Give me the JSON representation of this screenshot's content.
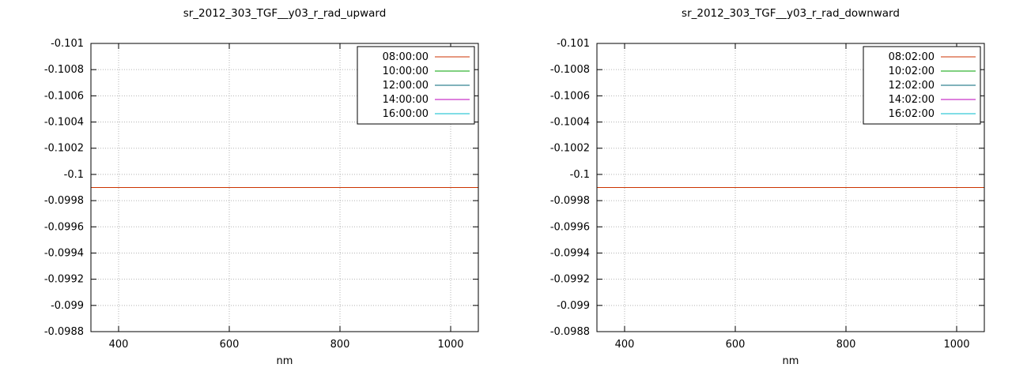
{
  "chart_data": [
    {
      "type": "line",
      "title": "sr_2012_303_TGF__y03_r_rad_upward",
      "xlabel": "nm",
      "xlim": [
        350,
        1050
      ],
      "ylim": [
        -0.101,
        -0.0988
      ],
      "y_axis_inverted_top_to_bottom": true,
      "x_ticks": [
        400,
        600,
        800,
        1000
      ],
      "y_tick_labels": [
        "-0.101",
        "-0.1008",
        "-0.1006",
        "-0.1004",
        "-0.1002",
        "-0.1",
        "-0.0998",
        "-0.0996",
        "-0.0994",
        "-0.0992",
        "-0.099",
        "-0.0988"
      ],
      "grid": "dotted",
      "legend_position": "top-right",
      "series": [
        {
          "name": "08:00:00",
          "color": "#cc3300",
          "value": -0.0999,
          "shape": "horizontal-constant"
        },
        {
          "name": "10:00:00",
          "color": "#00a000",
          "value": -0.0999,
          "shape": "horizontal-constant"
        },
        {
          "name": "12:00:00",
          "color": "#006677",
          "value": -0.0999,
          "shape": "horizontal-constant"
        },
        {
          "name": "14:00:00",
          "color": "#bb00bb",
          "value": -0.0999,
          "shape": "horizontal-constant"
        },
        {
          "name": "16:00:00",
          "color": "#00bbcc",
          "value": -0.0999,
          "shape": "horizontal-constant"
        }
      ]
    },
    {
      "type": "line",
      "title": "sr_2012_303_TGF__y03_r_rad_downward",
      "xlabel": "nm",
      "xlim": [
        350,
        1050
      ],
      "ylim": [
        -0.101,
        -0.0988
      ],
      "y_axis_inverted_top_to_bottom": true,
      "x_ticks": [
        400,
        600,
        800,
        1000
      ],
      "y_tick_labels": [
        "-0.101",
        "-0.1008",
        "-0.1006",
        "-0.1004",
        "-0.1002",
        "-0.1",
        "-0.0998",
        "-0.0996",
        "-0.0994",
        "-0.0992",
        "-0.099",
        "-0.0988"
      ],
      "grid": "dotted",
      "legend_position": "top-right",
      "series": [
        {
          "name": "08:02:00",
          "color": "#cc3300",
          "value": -0.0999,
          "shape": "horizontal-constant"
        },
        {
          "name": "10:02:00",
          "color": "#00a000",
          "value": -0.0999,
          "shape": "horizontal-constant"
        },
        {
          "name": "12:02:00",
          "color": "#006677",
          "value": -0.0999,
          "shape": "horizontal-constant"
        },
        {
          "name": "14:02:00",
          "color": "#bb00bb",
          "value": -0.0999,
          "shape": "horizontal-constant"
        },
        {
          "name": "16:02:00",
          "color": "#00bbcc",
          "value": -0.0999,
          "shape": "horizontal-constant"
        }
      ]
    }
  ],
  "style": {
    "grid_color": "#b3b3b3",
    "border_color": "#000000",
    "background": "#ffffff"
  }
}
